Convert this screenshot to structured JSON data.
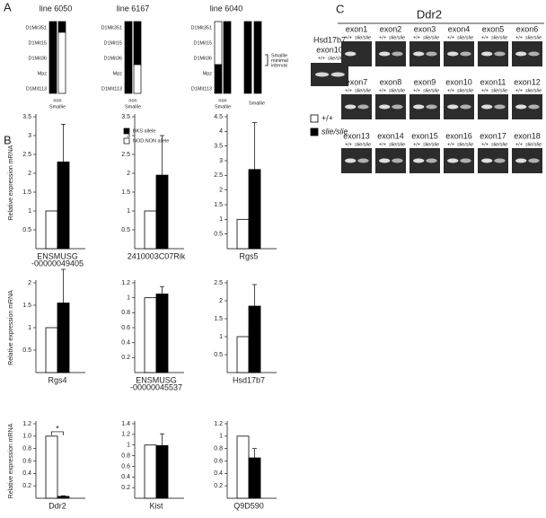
{
  "panel_a": {
    "label": "A",
    "markers": [
      "D1Mit351",
      "D1Mit15",
      "D1Mit36",
      "Mpz",
      "D1Mit113"
    ],
    "lines": [
      "line 6050",
      "line 6167",
      "line 6040"
    ],
    "groups": [
      [
        "non",
        "Smallie"
      ],
      [
        "Smallie"
      ]
    ],
    "interval": [
      "Smallie",
      "minimal",
      "interval"
    ],
    "legend": [
      "BKS allele",
      "NOD.NON allele"
    ]
  },
  "panel_b": {
    "label": "B",
    "ylabel": "Relative expression mRNA",
    "legend": [
      {
        "name": "+/+",
        "color": "#ffffff"
      },
      {
        "name": "slie/slie",
        "color": "#000000"
      }
    ]
  },
  "chart_data": [
    {
      "type": "bar",
      "xlabel": [
        "ENSMUSG",
        "-00000049405"
      ],
      "ylim": [
        0,
        3.5
      ],
      "yticks": [
        0.5,
        1,
        1.5,
        2,
        2.5,
        3,
        3.5
      ],
      "values": [
        1,
        2.3
      ],
      "errors": [
        null,
        1.0
      ]
    },
    {
      "type": "bar",
      "xlabel": [
        "2410003C07Rik"
      ],
      "ylim": [
        0,
        3.5
      ],
      "yticks": [
        0.5,
        1,
        1.5,
        2,
        2.5,
        3,
        3.5
      ],
      "values": [
        1,
        1.95
      ],
      "errors": [
        null,
        1.05
      ]
    },
    {
      "type": "bar",
      "xlabel": [
        "Rgs5"
      ],
      "ylim": [
        0,
        4.5
      ],
      "yticks": [
        0.5,
        1,
        1.5,
        2,
        2.5,
        3,
        3.5,
        4,
        4.5
      ],
      "values": [
        1,
        2.7
      ],
      "errors": [
        null,
        1.6
      ]
    },
    {
      "type": "bar",
      "xlabel": [
        "Rgs4"
      ],
      "ylim": [
        0,
        2
      ],
      "yticks": [
        0.5,
        1,
        1.5,
        2
      ],
      "values": [
        1,
        1.55
      ],
      "errors": [
        null,
        0.75
      ]
    },
    {
      "type": "bar",
      "xlabel": [
        "ENSMUSG",
        "-00000045537"
      ],
      "ylim": [
        0,
        1.2
      ],
      "yticks": [
        0.2,
        0.4,
        0.6,
        0.8,
        1,
        1.2
      ],
      "values": [
        1,
        1.05
      ],
      "errors": [
        null,
        0.1
      ]
    },
    {
      "type": "bar",
      "xlabel": [
        "Hsd17b7"
      ],
      "ylim": [
        0,
        2.5
      ],
      "yticks": [
        0.5,
        1,
        1.5,
        2,
        2.5
      ],
      "values": [
        1,
        1.85
      ],
      "errors": [
        null,
        0.6
      ]
    },
    {
      "type": "bar",
      "xlabel": [
        "Ddr2"
      ],
      "ylim": [
        0,
        1.2
      ],
      "yticks": [
        {
          "value": 0.2,
          "label": "0.2"
        },
        {
          "value": 0.4,
          "label": "0.4"
        },
        {
          "value": 0.6,
          "label": "0.6"
        },
        {
          "value": 0.8,
          "label": "0.8"
        },
        {
          "value": 1,
          "label": "1.0"
        },
        {
          "value": 1.2,
          "label": "1.2"
        }
      ],
      "values": [
        1,
        0.03
      ],
      "errors": [
        null,
        0.01
      ],
      "annotation": "*"
    },
    {
      "type": "bar",
      "xlabel": [
        "Kist"
      ],
      "ylim": [
        0,
        1.4
      ],
      "yticks": [
        0.2,
        0.4,
        0.6,
        0.8,
        1,
        1.2,
        1.4
      ],
      "values": [
        1,
        0.99
      ],
      "errors": [
        null,
        0.22
      ]
    },
    {
      "type": "bar",
      "xlabel": [
        "Q9D590"
      ],
      "ylim": [
        0,
        1.2
      ],
      "yticks": [
        0.2,
        0.4,
        0.6,
        0.8,
        1,
        1.2
      ],
      "values": [
        1,
        0.65
      ],
      "errors": [
        null,
        0.15
      ]
    }
  ],
  "panel_c": {
    "label": "C",
    "gene": "Ddr2",
    "genotypes": [
      "+/+",
      "slie/slie"
    ],
    "control": {
      "gene": "Hsd17b7",
      "exon": "exon10"
    },
    "exons": [
      "exon1",
      "exon2",
      "exon3",
      "exon4",
      "exon5",
      "exon6",
      "exon7",
      "exon8",
      "exon9",
      "exon10",
      "exon11",
      "exon12",
      "exon13",
      "exon14",
      "exon15",
      "exon16",
      "exon17",
      "exon18"
    ]
  }
}
